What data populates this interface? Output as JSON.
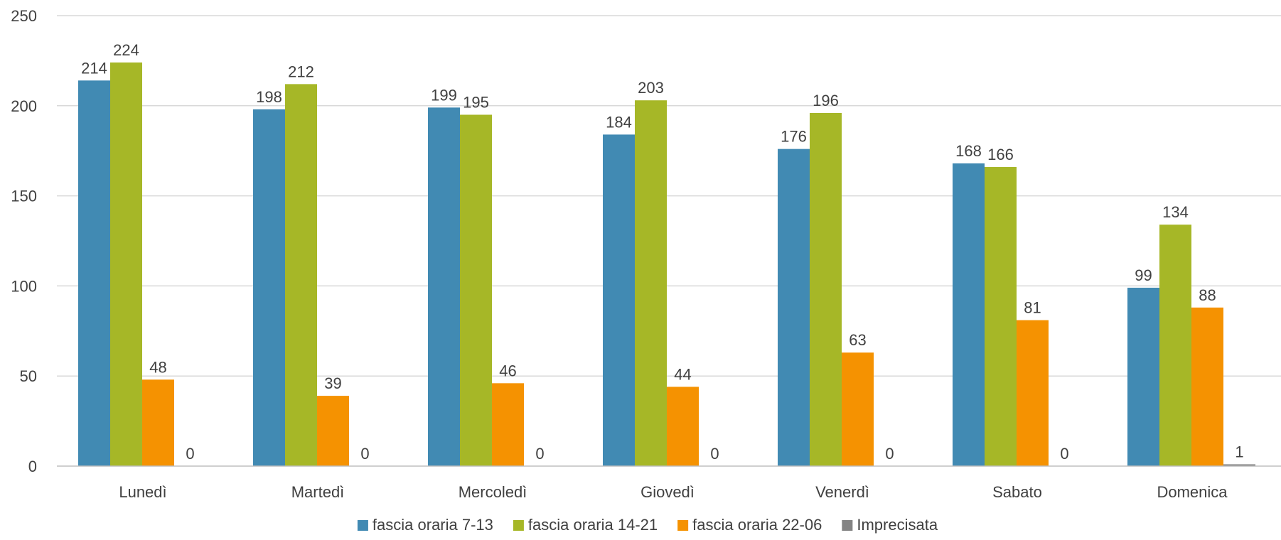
{
  "chart_data": {
    "type": "bar",
    "categories": [
      "Lunedì",
      "Martedì",
      "Mercoledì",
      "Giovedì",
      "Venerdì",
      "Sabato",
      "Domenica"
    ],
    "series": [
      {
        "name": "fascia oraria 7-13",
        "color": "#418ab3",
        "values": [
          214,
          198,
          199,
          184,
          176,
          168,
          99
        ]
      },
      {
        "name": "fascia oraria 14-21",
        "color": "#a6b727",
        "values": [
          224,
          212,
          195,
          203,
          196,
          166,
          134
        ]
      },
      {
        "name": "fascia oraria 22-06",
        "color": "#f59201",
        "values": [
          48,
          39,
          46,
          44,
          63,
          81,
          88
        ]
      },
      {
        "name": "Imprecisata",
        "color": "#838383",
        "values": [
          0,
          0,
          0,
          0,
          0,
          0,
          1
        ]
      }
    ],
    "title": "",
    "xlabel": "",
    "ylabel": "",
    "ylim": [
      0,
      250
    ],
    "yticks": [
      0,
      50,
      100,
      150,
      200,
      250
    ],
    "grid": true,
    "legend_position": "bottom",
    "data_labels": true
  }
}
